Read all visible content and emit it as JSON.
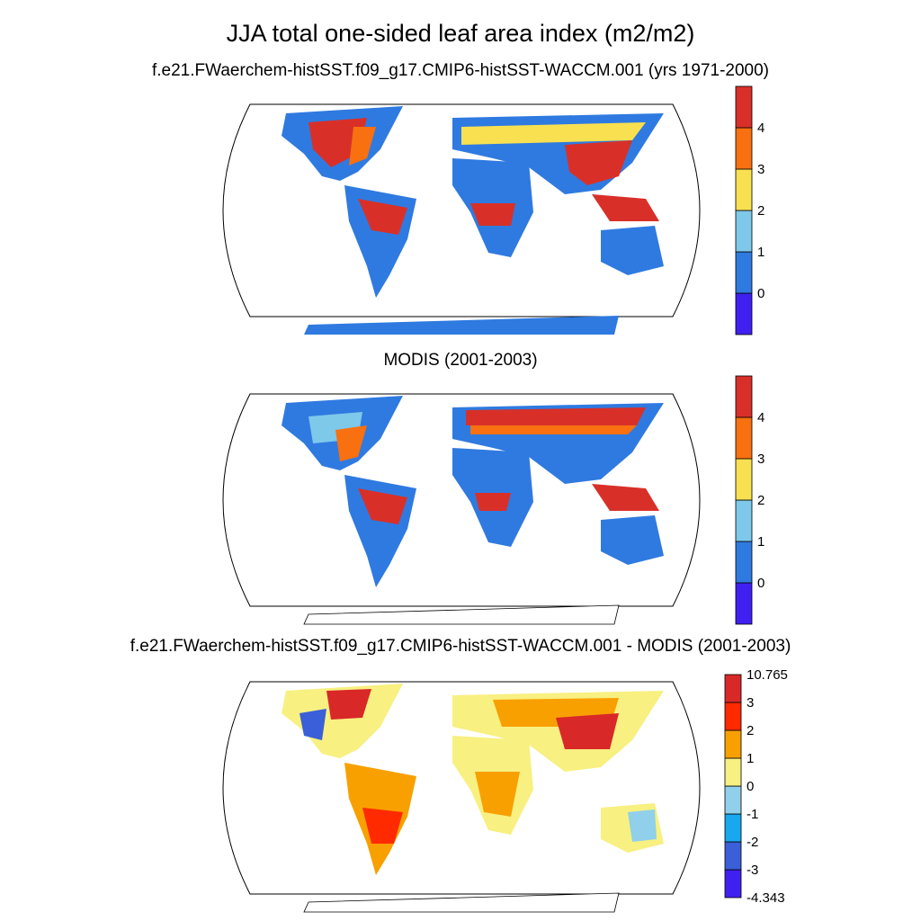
{
  "title": "JJA total one-sided leaf area index (m2/m2)",
  "panels": [
    {
      "title": "f.e21.FWaerchem-histSST.f09_g17.CMIP6-histSST-WACCM.001 (yrs 1971-2000)",
      "colorbar": {
        "labels": [
          "0",
          "1",
          "2",
          "3",
          "4"
        ],
        "colors": [
          "#4020f0",
          "#2f7ae0",
          "#7ec8ea",
          "#f8e050",
          "#f87010",
          "#d83028"
        ]
      }
    },
    {
      "title": "MODIS (2001-2003)",
      "colorbar": {
        "labels": [
          "0",
          "1",
          "2",
          "3",
          "4"
        ],
        "colors": [
          "#4020f0",
          "#2f7ae0",
          "#7ec8ea",
          "#f8e050",
          "#f87010",
          "#d83028"
        ]
      }
    },
    {
      "title": "f.e21.FWaerchem-histSST.f09_g17.CMIP6-histSST-WACCM.001 - MODIS (2001-2003)",
      "colorbar": {
        "labels": [
          "10.765",
          "3",
          "2",
          "1",
          "0",
          "-1",
          "-2",
          "-3",
          "-4.343"
        ],
        "colors": [
          "#4020f0",
          "#3a5fd8",
          "#18a8f0",
          "#90d0ea",
          "#f8f080",
          "#f8a000",
          "#ff2a00",
          "#d82828"
        ]
      }
    }
  ]
}
